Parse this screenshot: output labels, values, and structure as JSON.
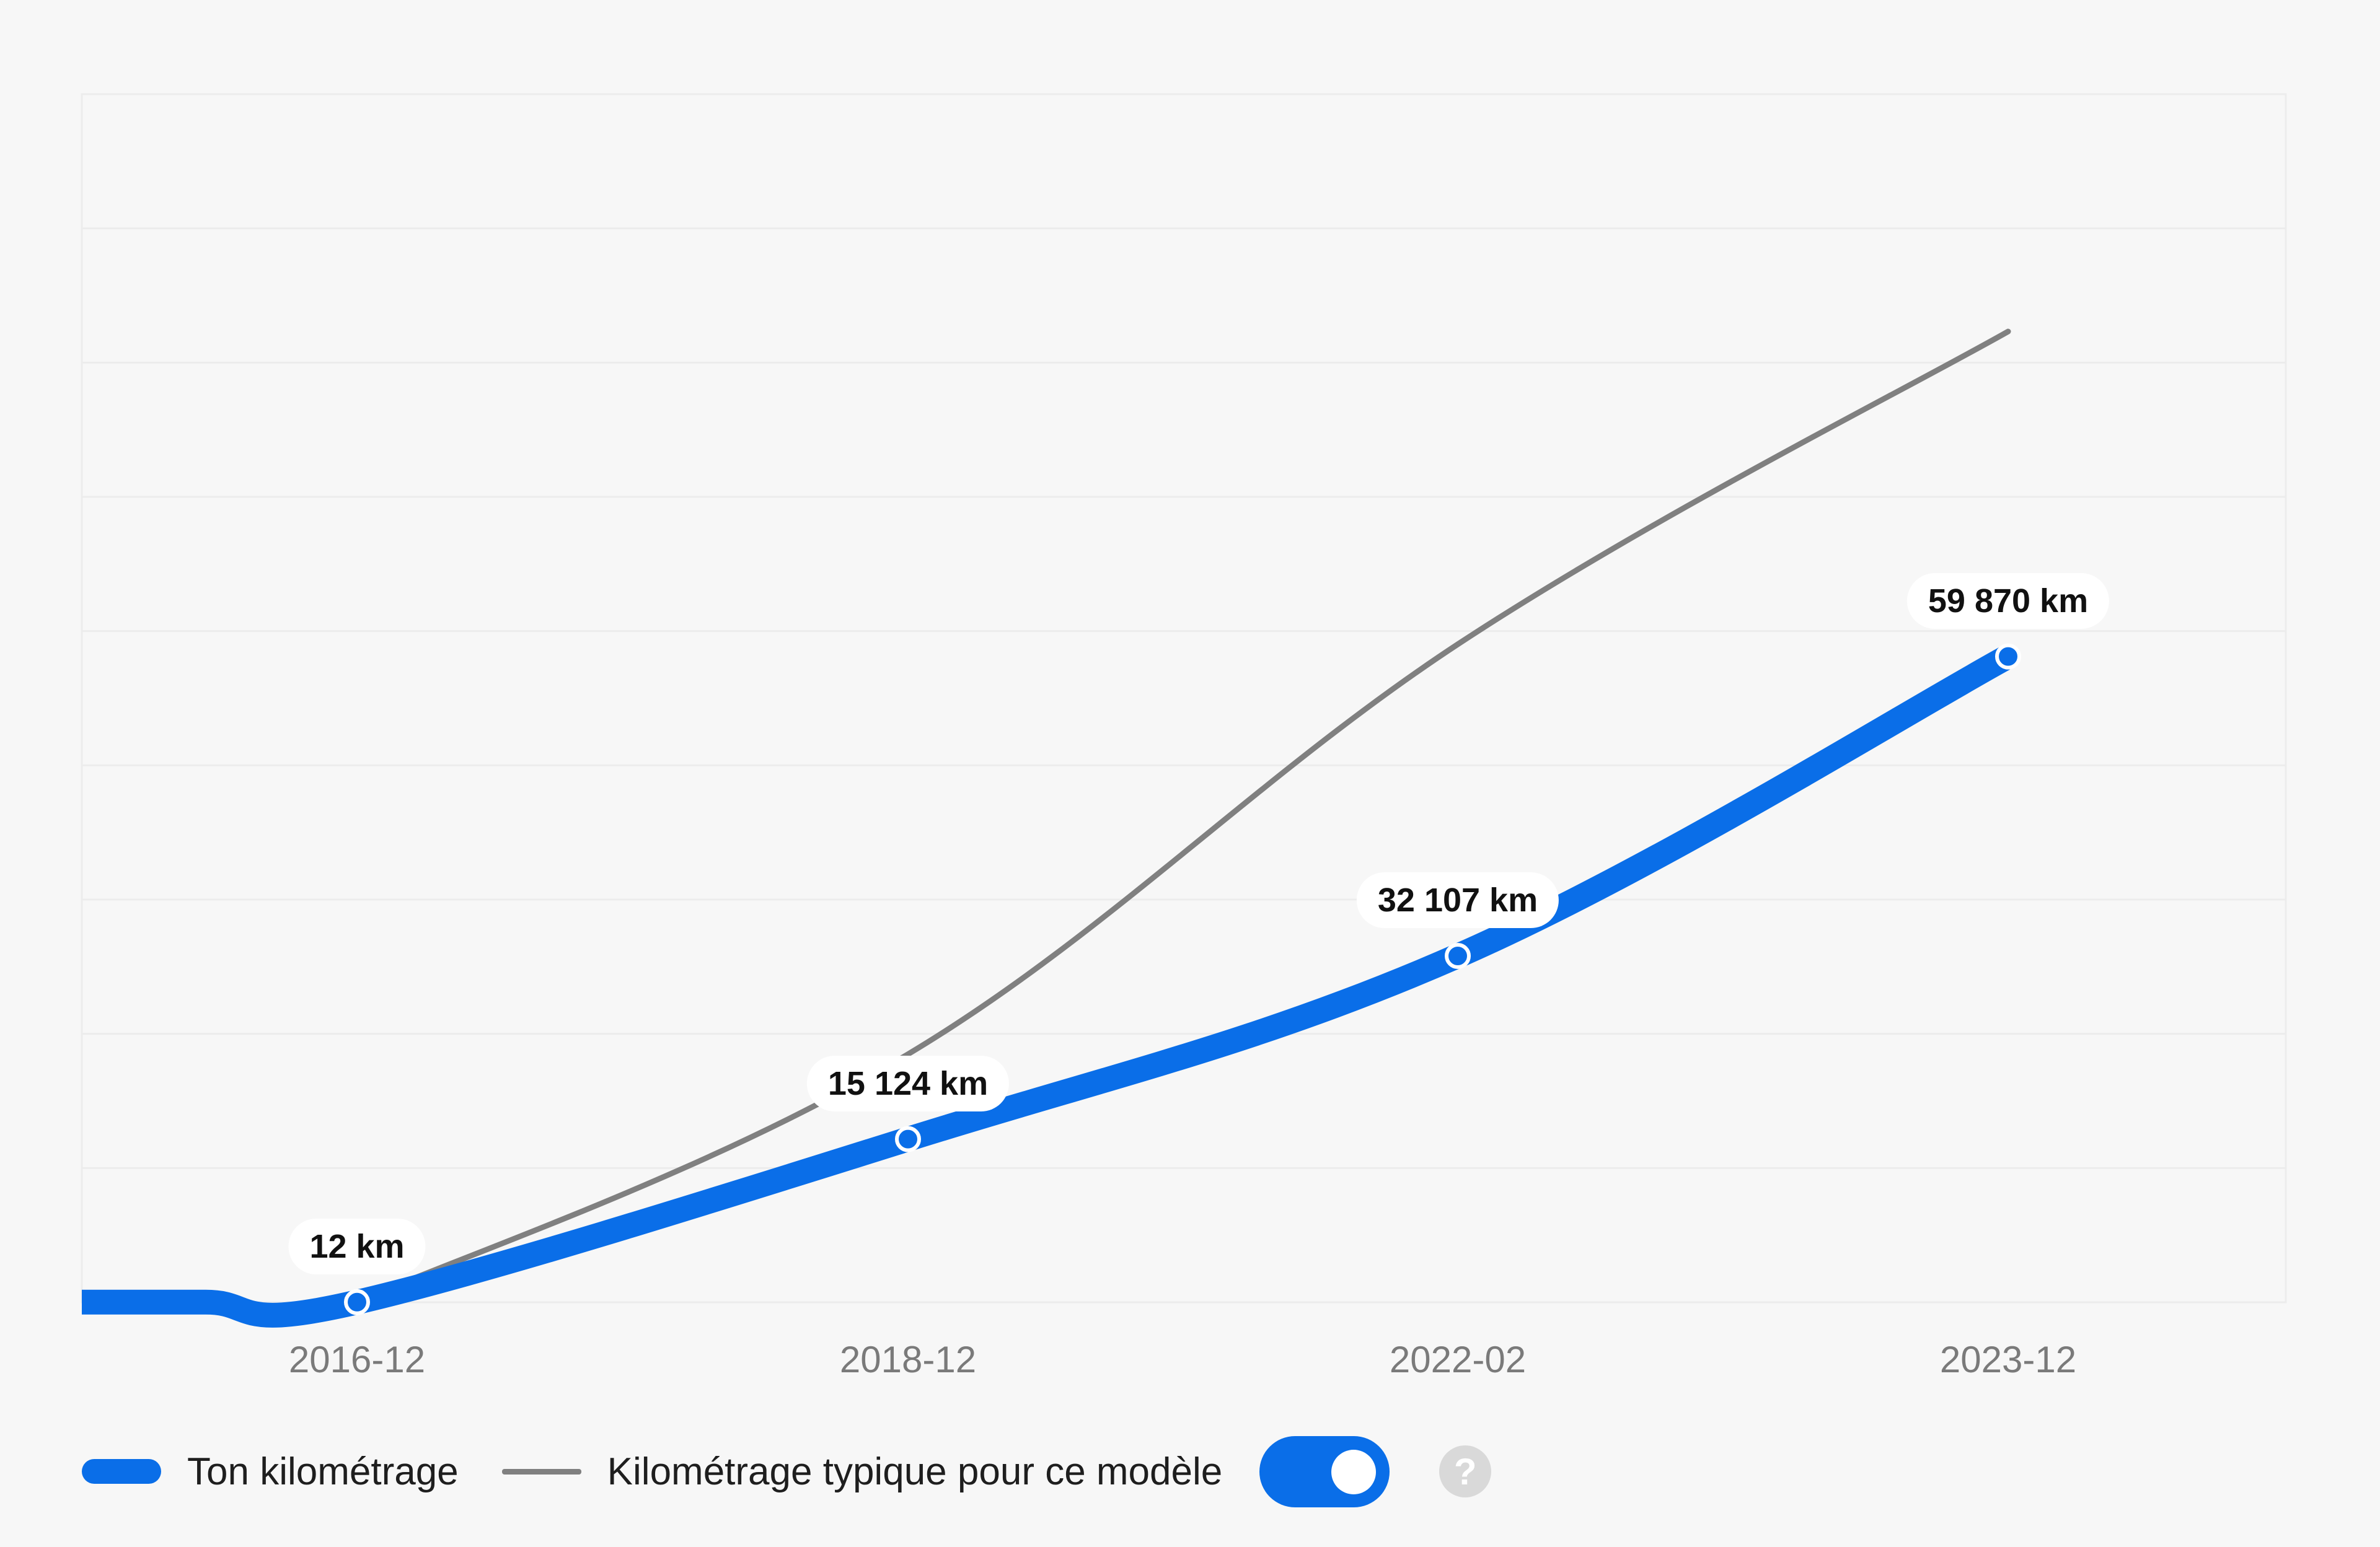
{
  "chart_data": {
    "type": "line",
    "categories": [
      "2016-12",
      "2018-12",
      "2022-02",
      "2023-12"
    ],
    "series": [
      {
        "name": "Ton kilométrage",
        "values": [
          12,
          15124,
          32107,
          59870
        ],
        "labels": [
          "12 km",
          "15 124 km",
          "32 107 km",
          "59 870 km"
        ],
        "color": "#0a6ee8"
      },
      {
        "name": "Kilométrage typique pour ce modèle",
        "values": [
          12,
          23000,
          61000,
          90000
        ],
        "color": "#808080"
      }
    ],
    "ylim": [
      0,
      112000
    ],
    "grid": true,
    "legend_position": "bottom-left"
  },
  "legend": {
    "mine": "Ton kilométrage",
    "typical": "Kilométrage typique pour ce modèle",
    "toggle_on": true,
    "help_icon": "?"
  }
}
